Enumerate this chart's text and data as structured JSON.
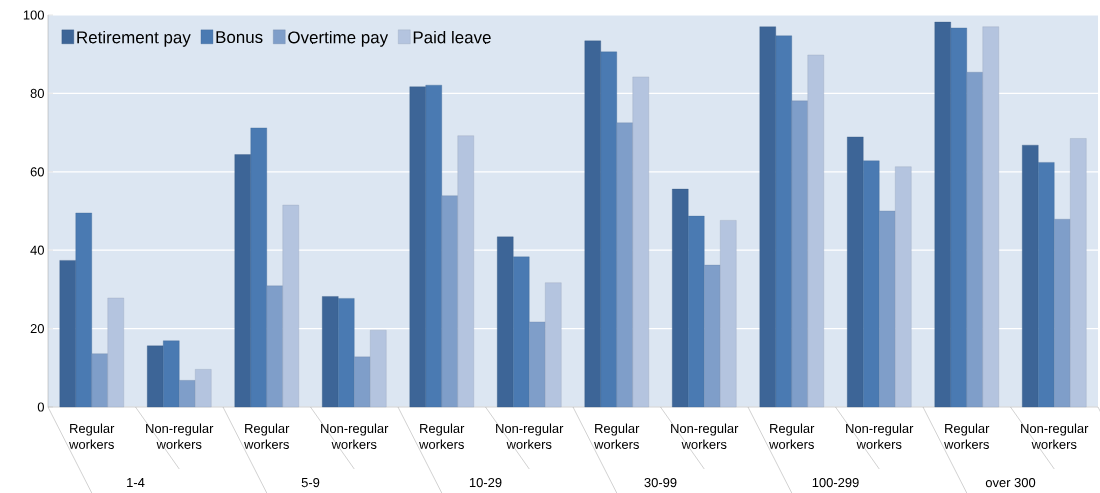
{
  "chart_data": {
    "type": "bar",
    "categories": [
      "Regular workers",
      "Non-regular workers",
      "Regular workers",
      "Non-regular workers",
      "Regular workers",
      "Non-regular workers",
      "Regular workers",
      "Non-regular workers",
      "Regular workers",
      "Non-regular workers",
      "Regular workers",
      "Non-regular workers"
    ],
    "series": [
      {
        "name": "Retirement pay",
        "color": "#3d6597",
        "values": [
          37.4,
          15.6,
          64.4,
          28.2,
          81.7,
          43.4,
          93.4,
          55.6,
          97.0,
          68.9,
          98.2,
          66.8
        ]
      },
      {
        "name": "Bonus",
        "color": "#4a7ab2",
        "values": [
          49.5,
          16.9,
          71.2,
          27.7,
          82.1,
          38.3,
          90.6,
          48.7,
          94.7,
          62.8,
          96.7,
          62.4
        ]
      },
      {
        "name": "Overtime pay",
        "color": "#7f9ec9",
        "values": [
          13.6,
          6.8,
          30.9,
          12.8,
          53.9,
          21.7,
          72.5,
          36.2,
          78.1,
          50.0,
          85.4,
          47.9
        ]
      },
      {
        "name": "Paid leave",
        "color": "#b4c4df",
        "values": [
          27.8,
          9.6,
          51.5,
          19.6,
          69.2,
          31.7,
          84.2,
          47.6,
          89.8,
          61.3,
          97.0,
          68.5
        ]
      }
    ],
    "annotations": [
      "1-4",
      "5-9",
      "10-29",
      "30-99",
      "100-299",
      "over 300"
    ],
    "ylim": [
      0,
      100
    ],
    "yticks": [
      0,
      20,
      40,
      60,
      80,
      100
    ],
    "grid": "y",
    "legend": "top left"
  }
}
